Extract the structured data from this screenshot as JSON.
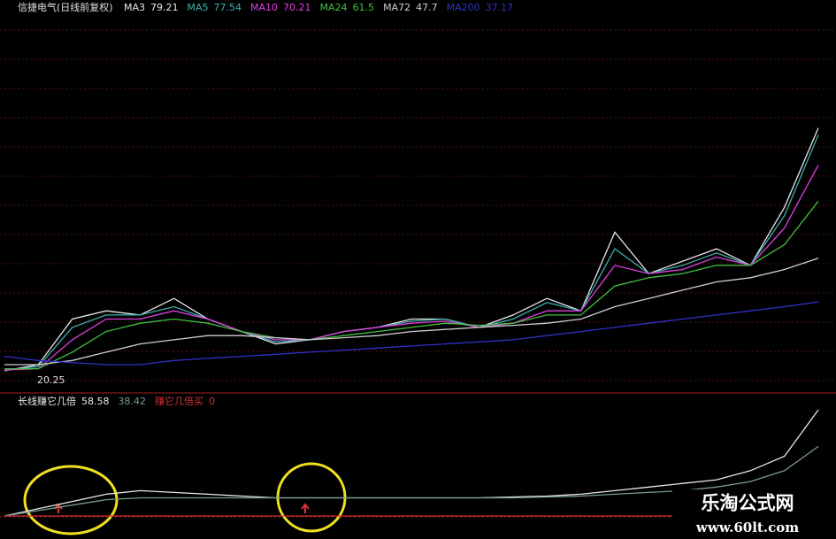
{
  "chart_data": [
    {
      "type": "line",
      "title": "信捷电气(日线前复权)",
      "low_label": "20.25",
      "categories": [
        null,
        null,
        null,
        null,
        null,
        null,
        null,
        null,
        null,
        null,
        null,
        null,
        null,
        null,
        null,
        null,
        null,
        null,
        null,
        null,
        null,
        null,
        null,
        null,
        null
      ],
      "ylim": [
        16,
        108
      ],
      "series": [
        {
          "name": "MA3",
          "color": "#e8e8e8",
          "values": [
            20.5,
            22,
            33,
            35,
            34,
            38,
            33,
            30,
            27,
            28,
            30,
            31,
            33,
            33,
            31,
            34,
            38,
            35,
            54,
            44,
            47,
            50,
            46,
            60,
            79.21
          ]
        },
        {
          "name": "MA5",
          "color": "#3fb0b0",
          "values": [
            20.6,
            21.5,
            31,
            34,
            34,
            36,
            33,
            30,
            27.5,
            28,
            30,
            31,
            32.5,
            33,
            31,
            33,
            37,
            35,
            50,
            44,
            46,
            49,
            46,
            58,
            77.54
          ]
        },
        {
          "name": "MA10",
          "color": "#e040e0",
          "values": [
            20.7,
            21,
            28,
            33,
            33,
            35,
            33,
            30,
            28,
            28,
            30,
            31,
            32,
            32.5,
            31,
            32,
            35,
            35,
            46,
            44,
            45,
            48,
            46,
            55,
            70.21
          ]
        },
        {
          "name": "MA24",
          "color": "#40c040",
          "values": [
            21,
            21,
            25,
            30,
            32,
            33,
            32,
            30,
            28.5,
            28,
            29,
            30,
            31,
            32,
            31.5,
            32,
            34,
            34,
            41,
            43,
            44,
            46,
            46,
            51,
            61.5
          ]
        },
        {
          "name": "MA72",
          "color": "#cfcfcf",
          "values": [
            22,
            22,
            23,
            25,
            27,
            28,
            29,
            29,
            28.5,
            28,
            28.5,
            29,
            30,
            30.5,
            31,
            31.5,
            32,
            33,
            36,
            38,
            40,
            42,
            43,
            45,
            47.7
          ]
        },
        {
          "name": "MA200",
          "color": "#3030c8",
          "values": [
            24,
            23,
            22.5,
            22,
            22,
            23,
            23.5,
            24,
            24.5,
            25,
            25.5,
            26,
            26.5,
            27,
            27.5,
            28,
            29,
            30,
            31,
            32,
            33,
            34,
            35,
            36,
            37.17
          ]
        }
      ]
    },
    {
      "type": "line",
      "categories": [
        null,
        null,
        null,
        null,
        null,
        null,
        null,
        null,
        null,
        null,
        null,
        null,
        null,
        null,
        null,
        null,
        null,
        null,
        null,
        null,
        null,
        null,
        null,
        null,
        null
      ],
      "ylim": [
        0,
        65
      ],
      "series": [
        {
          "name": "长线赚它几倍",
          "color": "#e8e8e8",
          "values": [
            0,
            4,
            8,
            12,
            14,
            13,
            12,
            11,
            10,
            10,
            10,
            10,
            10,
            10,
            10,
            10.5,
            11,
            12,
            14,
            16,
            18,
            20,
            25,
            33,
            58.58
          ]
        },
        {
          "color": "#7a9a90",
          "values": [
            0,
            3,
            6,
            9,
            10,
            10,
            10,
            10,
            10,
            10,
            10,
            10,
            10,
            10,
            10,
            10,
            10.5,
            11,
            12,
            13,
            14,
            16,
            19,
            25,
            38.42
          ]
        },
        {
          "name": "赚它几倍买",
          "color": "#d03030",
          "values": [
            0,
            0,
            0,
            0,
            0,
            0,
            0,
            0,
            0,
            0,
            0,
            0,
            0,
            0,
            0,
            0,
            0,
            0,
            0,
            0,
            0,
            0,
            0,
            0,
            0
          ]
        }
      ]
    }
  ],
  "watermark": {
    "name": "乐淘公式网",
    "url": "www.60lt.com"
  }
}
